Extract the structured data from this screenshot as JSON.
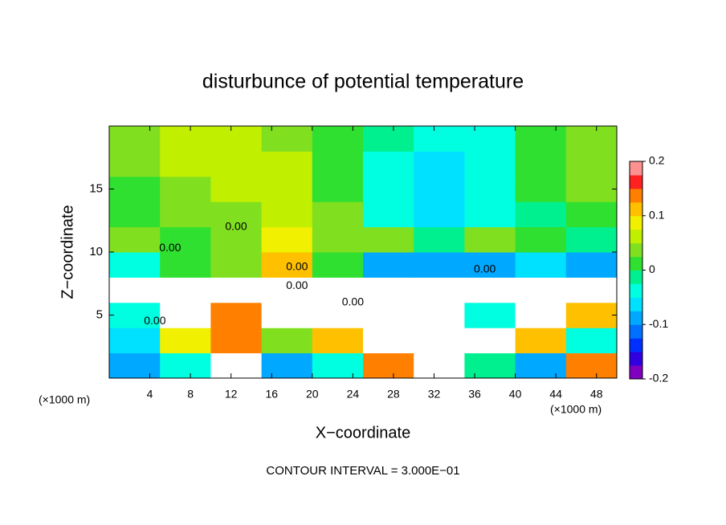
{
  "chart_data": {
    "type": "heatmap",
    "title": "disturbunce of potential temperature",
    "x_label": "X−coordinate",
    "y_label": "Z−coordinate",
    "x_unit_left": "(×1000 m)",
    "x_unit_right": "(×1000 m)",
    "footer": "CONTOUR INTERVAL = 3.000E−01",
    "xlim": [
      0,
      50
    ],
    "ylim": [
      0,
      20
    ],
    "xticks": [
      4,
      8,
      12,
      16,
      20,
      24,
      28,
      32,
      36,
      40,
      44,
      48
    ],
    "yticks": [
      5,
      10,
      15
    ],
    "x": [
      2.5,
      7.5,
      12.5,
      17.5,
      22.5,
      27.5,
      32.5,
      37.5,
      42.5,
      47.5
    ],
    "y": [
      1,
      3,
      5,
      7,
      9,
      11,
      13,
      15,
      17,
      19
    ],
    "z": [
      [
        -0.1,
        -0.05,
        0.3,
        -0.08,
        -0.05,
        0.15,
        0.3,
        -0.02,
        -0.08,
        0.15
      ],
      [
        -0.06,
        0.08,
        0.15,
        0.03,
        0.1,
        0.3,
        0.3,
        0.3,
        0.1,
        -0.03
      ],
      [
        -0.05,
        0.3,
        0.15,
        0.3,
        0.3,
        0.3,
        0.25,
        -0.05,
        0.3,
        0.1
      ],
      [
        0.3,
        0.3,
        0.3,
        0.3,
        0.3,
        0.3,
        0.3,
        0.3,
        0.3,
        0.3
      ],
      [
        -0.03,
        0.0,
        0.03,
        0.1,
        0.02,
        -0.08,
        -0.1,
        -0.08,
        -0.06,
        -0.08
      ],
      [
        0.03,
        0.02,
        0.03,
        0.09,
        0.04,
        0.03,
        -0.02,
        0.03,
        0.0,
        -0.01
      ],
      [
        0.02,
        0.03,
        0.03,
        0.06,
        0.03,
        -0.04,
        -0.07,
        -0.05,
        -0.02,
        0.02
      ],
      [
        0.02,
        0.04,
        0.05,
        0.06,
        0.02,
        -0.03,
        -0.07,
        -0.05,
        0.0,
        0.03
      ],
      [
        0.03,
        0.05,
        0.06,
        0.05,
        0.02,
        -0.03,
        -0.06,
        -0.05,
        0.01,
        0.04
      ],
      [
        0.04,
        0.05,
        0.05,
        0.04,
        0.02,
        -0.02,
        -0.04,
        -0.03,
        0.02,
        0.04
      ]
    ],
    "clim": [
      -0.2,
      0.2
    ],
    "cticks": [
      -0.2,
      -0.1,
      0,
      0.1,
      0.2
    ],
    "colors": [
      "#8000c0",
      "#3000e0",
      "#0030ff",
      "#0070ff",
      "#00a8ff",
      "#00e0ff",
      "#00ffe0",
      "#00f090",
      "#30e030",
      "#80e020",
      "#c0f000",
      "#f0f000",
      "#ffc000",
      "#ff8000",
      "#ff2020",
      "#ff9090"
    ],
    "contour_labels": [
      {
        "text": "0.00",
        "x": 12.5,
        "y": 12
      },
      {
        "text": "0.00",
        "x": 6,
        "y": 10.3
      },
      {
        "text": "0.00",
        "x": 18.5,
        "y": 8.8
      },
      {
        "text": "0.00",
        "x": 18.5,
        "y": 7.3
      },
      {
        "text": "0.00",
        "x": 24,
        "y": 6
      },
      {
        "text": "0.00",
        "x": 37,
        "y": 8.6
      },
      {
        "text": "0.00",
        "x": 4.5,
        "y": 4.5
      }
    ]
  }
}
